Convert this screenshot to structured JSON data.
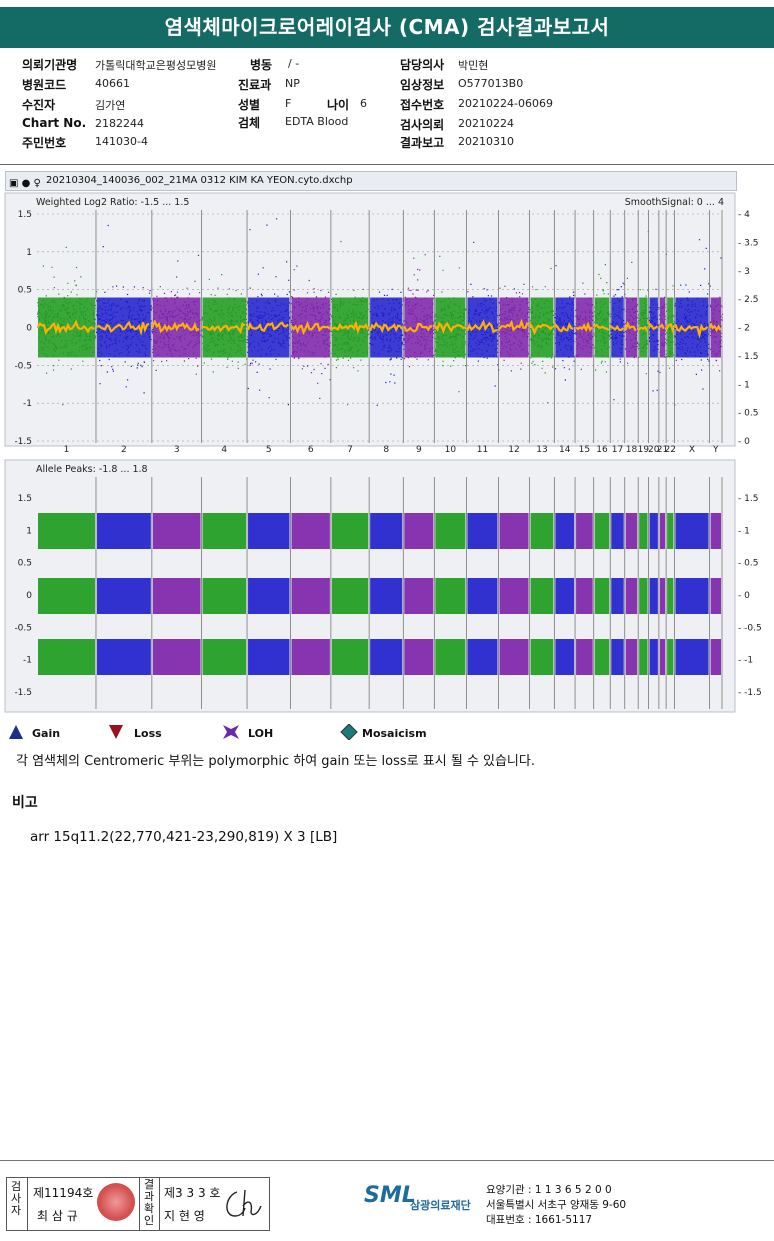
{
  "report": {
    "title": "염색체마이크로어레이검사 (CMA) 검사결과보고서"
  },
  "info": {
    "left": [
      {
        "label": "의뢰기관명",
        "value": "가톨릭대학교은평성모병원"
      },
      {
        "label": "병원코드",
        "value": "40661"
      },
      {
        "label": "수진자",
        "value": "김가연"
      },
      {
        "label": "Chart No.",
        "value": "2182244"
      },
      {
        "label": "주민번호",
        "value": "141030-4"
      }
    ],
    "mid": [
      {
        "label": "병동",
        "value": "/ -"
      },
      {
        "label": "진료과",
        "value": "NP"
      },
      {
        "label": "성별",
        "value": "F"
      },
      {
        "label": "검체",
        "value": "EDTA Blood"
      }
    ],
    "age": {
      "label": "나이",
      "value": "6"
    },
    "right": [
      {
        "label": "담당의사",
        "value": "박민현"
      },
      {
        "label": "임상정보",
        "value": "O577013B0"
      },
      {
        "label": "접수번호",
        "value": "20210224-06069"
      },
      {
        "label": "검사의뢰",
        "value": "20210224"
      },
      {
        "label": "결과보고",
        "value": "20210310"
      }
    ]
  },
  "plot": {
    "file_name": "20210304_140036_002_21MA 0312 KIM KA YEON.cyto.dxchp",
    "top_label": "Weighted Log2 Ratio: -1.5 ... 1.5",
    "top_right_label": "SmoothSignal: 0 ... 4",
    "bottom_label": "Allele Peaks: -1.8 ... 1.8",
    "top_left_ticks": [
      "1.5",
      "1",
      "0.5",
      "0",
      "-0.5",
      "-1",
      "-1.5"
    ],
    "top_right_ticks": [
      "4",
      "3.5",
      "3",
      "2.5",
      "2",
      "1.5",
      "1",
      "0.5",
      "0"
    ],
    "bottom_left_ticks": [
      "1.5",
      "1",
      "0.5",
      "0",
      "-0.5",
      "-1",
      "-1.5"
    ],
    "bottom_right_ticks": [
      "1.5",
      "1",
      "0.5",
      "0",
      "-0.5",
      "-1",
      "-1.5"
    ],
    "chromosomes": [
      "1",
      "2",
      "3",
      "4",
      "5",
      "6",
      "7",
      "8",
      "9",
      "10",
      "11",
      "12",
      "13",
      "14",
      "15",
      "16",
      "17",
      "18",
      "19",
      "20",
      "21",
      "22",
      "X",
      "Y"
    ],
    "colors": {
      "green": "#1a9a1a",
      "blue": "#1c1ccc",
      "purple": "#7a1fa8",
      "orange": "#ffb000"
    }
  },
  "legend": [
    {
      "label": "Gain",
      "icon": "triangle-up-icon",
      "color": "#1c2f8a"
    },
    {
      "label": "Loss",
      "icon": "triangle-down-icon",
      "color": "#9a1020"
    },
    {
      "label": "LOH",
      "icon": "loh-icon",
      "color": "#6a2aa8"
    },
    {
      "label": "Mosaicism",
      "icon": "diamond-icon",
      "color": "#1b7a7a"
    }
  ],
  "note": "각 염색체의 Centromeric 부위는 polymorphic 하여 gain 또는 loss로 표시 될 수 있습니다.",
  "remark": {
    "heading": "비고",
    "text": "arr 15q11.2(22,770,421-23,290,819) X 3 [LB]"
  },
  "footer": {
    "col1": "검사자",
    "no1": "제11194호",
    "name1": "최 삼 규",
    "col2": "결과확인",
    "no2": "제3 3 3 호",
    "name2": "지 현 영",
    "logo": "SML",
    "org": "삼광의료재단",
    "lines": [
      "요양기관 : 1 1 3 6 5 2 0 0",
      "서울특별시 서초구 양재동 9-60",
      "대표번호 : 1661-5117"
    ]
  }
}
